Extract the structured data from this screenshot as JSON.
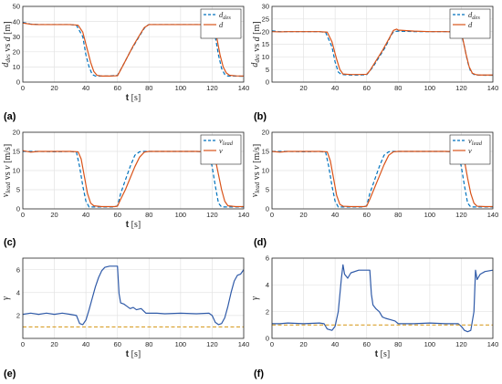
{
  "panel_labels": [
    "(a)",
    "(b)",
    "(c)",
    "(d)",
    "(e)",
    "(f)"
  ],
  "colors": {
    "dashed": "#0072BD",
    "solid": "#D95319",
    "ref": "#D9A02C",
    "gamma": "#2F5AA8"
  },
  "chart_data": [
    {
      "type": "line",
      "panel": "a",
      "xlabel": "t [s]",
      "ylabel": "d_des vs d [m]",
      "xlim": [
        0,
        140
      ],
      "ylim": [
        0,
        50
      ],
      "xticks": [
        0,
        20,
        40,
        60,
        80,
        100,
        120,
        140
      ],
      "yticks": [
        0,
        10,
        20,
        30,
        40,
        50
      ],
      "grid": true,
      "legend": "top-right",
      "series": [
        {
          "name": "d_des",
          "style": "dashed",
          "x": [
            0,
            5,
            10,
            20,
            30,
            34,
            38,
            40,
            42,
            44,
            46,
            50,
            55,
            60,
            64,
            68,
            72,
            76,
            78,
            80,
            85,
            90,
            100,
            110,
            118,
            120,
            122,
            124,
            126,
            128,
            130,
            135,
            140
          ],
          "y": [
            39.5,
            38.3,
            38,
            38,
            38,
            37.5,
            30,
            18,
            10,
            5,
            4,
            4,
            4,
            4.5,
            12,
            20,
            27,
            34,
            37,
            38,
            38,
            38,
            38,
            38,
            38,
            37,
            30,
            18,
            9,
            5,
            4,
            4,
            3.8
          ]
        },
        {
          "name": "d",
          "style": "solid",
          "x": [
            0,
            5,
            10,
            20,
            30,
            35,
            38,
            41,
            43,
            45,
            47,
            50,
            55,
            60,
            62,
            66,
            70,
            74,
            77,
            80,
            85,
            90,
            100,
            110,
            119,
            121,
            123,
            125,
            127,
            129,
            131,
            135,
            140
          ],
          "y": [
            39,
            38.2,
            38,
            38,
            38,
            37.6,
            33,
            21,
            13,
            7,
            4.5,
            4,
            4,
            4.2,
            8,
            16,
            24,
            31,
            36,
            38,
            38,
            38,
            38,
            38,
            38,
            36,
            29,
            18,
            10,
            6,
            4.5,
            4.1,
            4
          ]
        }
      ]
    },
    {
      "type": "line",
      "panel": "b",
      "xlabel": "",
      "ylabel": "d_des vs d [m]",
      "xlim": [
        0,
        140
      ],
      "ylim": [
        0,
        30
      ],
      "xticks": [
        20,
        40,
        60,
        80,
        100,
        120,
        140
      ],
      "yticks": [
        0,
        5,
        10,
        15,
        20,
        25,
        30
      ],
      "grid": true,
      "legend": "top-right",
      "series": [
        {
          "name": "d_des",
          "style": "dashed",
          "x": [
            0,
            5,
            10,
            20,
            30,
            34,
            38,
            40,
            42,
            44,
            50,
            55,
            60,
            64,
            68,
            72,
            75,
            77,
            80,
            90,
            100,
            110,
            118,
            120,
            122,
            124,
            126,
            128,
            130,
            135,
            140
          ],
          "y": [
            20.3,
            20,
            20,
            20,
            20,
            19.7,
            14,
            8,
            4,
            3,
            2.8,
            2.8,
            2.9,
            6,
            10,
            14,
            18,
            20,
            20.2,
            20,
            20,
            20,
            20,
            19,
            14,
            8,
            4,
            3,
            2.8,
            2.7,
            2.7
          ]
        },
        {
          "name": "d",
          "style": "solid",
          "x": [
            0,
            5,
            10,
            20,
            30,
            35,
            38,
            41,
            43,
            45,
            50,
            55,
            60,
            62,
            66,
            70,
            74,
            77,
            79,
            80,
            90,
            100,
            110,
            119,
            121,
            123,
            125,
            127,
            129,
            131,
            135,
            140
          ],
          "y": [
            20,
            19.9,
            20,
            20,
            20,
            19.8,
            16,
            9,
            5,
            3.2,
            3,
            3,
            3.1,
            4.5,
            8.5,
            12.5,
            17,
            20.5,
            21,
            20.6,
            20.2,
            20,
            20,
            19.8,
            17,
            11,
            6,
            3.5,
            3,
            2.8,
            2.8,
            2.8
          ]
        }
      ]
    },
    {
      "type": "line",
      "panel": "c",
      "xlabel": "t [s]",
      "ylabel": "v_lead vs v [m/s]",
      "xlim": [
        0,
        140
      ],
      "ylim": [
        0,
        20
      ],
      "xticks": [
        0,
        20,
        40,
        60,
        80,
        100,
        120,
        140
      ],
      "yticks": [
        0,
        5,
        10,
        15,
        20
      ],
      "grid": true,
      "legend": "top-right",
      "series": [
        {
          "name": "v_lead",
          "style": "dashed",
          "x": [
            0,
            5,
            10,
            20,
            30,
            34,
            36,
            38,
            40,
            42,
            50,
            58,
            60,
            62,
            65,
            68,
            71,
            74,
            76,
            80,
            90,
            100,
            110,
            118,
            120,
            122,
            124,
            126,
            130,
            135,
            140
          ],
          "y": [
            15,
            15,
            15,
            14.9,
            15,
            14.8,
            11,
            6,
            2,
            0.5,
            0.5,
            0.5,
            0.8,
            4,
            7.5,
            11,
            14,
            14.9,
            15,
            15,
            15,
            15,
            15,
            14.8,
            11,
            6,
            1.5,
            0.5,
            0.5,
            0.5,
            0.5
          ]
        },
        {
          "name": "v",
          "style": "solid",
          "x": [
            0,
            5,
            10,
            20,
            30,
            35,
            37,
            39,
            41,
            43,
            45,
            50,
            58,
            60,
            62,
            65,
            68,
            71,
            74,
            77,
            80,
            90,
            100,
            110,
            120,
            122,
            124,
            126,
            128,
            130,
            135,
            140
          ],
          "y": [
            15.2,
            14.8,
            15,
            15,
            15,
            14.9,
            13,
            8.5,
            4,
            1.5,
            0.8,
            0.6,
            0.6,
            0.7,
            2.5,
            5,
            8,
            11,
            13.5,
            14.8,
            15,
            15,
            15,
            15,
            14.9,
            13,
            9,
            5,
            2,
            0.8,
            0.6,
            0.6
          ]
        }
      ]
    },
    {
      "type": "line",
      "panel": "d",
      "xlabel": "",
      "ylabel": "v_lead vs v [m/s]",
      "xlim": [
        0,
        140
      ],
      "ylim": [
        0,
        20
      ],
      "xticks": [
        0,
        20,
        40,
        60,
        80,
        100,
        120,
        140
      ],
      "yticks": [
        0,
        5,
        10,
        15,
        20
      ],
      "grid": true,
      "legend": "top-right",
      "series": [
        {
          "name": "v_lead",
          "style": "dashed",
          "x": [
            0,
            5,
            10,
            20,
            30,
            34,
            36,
            38,
            40,
            42,
            50,
            58,
            60,
            62,
            65,
            68,
            71,
            74,
            76,
            80,
            90,
            100,
            110,
            118,
            120,
            122,
            124,
            126,
            130,
            135,
            140
          ],
          "y": [
            15,
            15,
            15,
            14.9,
            15,
            14.8,
            11,
            6,
            2,
            0.5,
            0.5,
            0.5,
            0.8,
            4,
            7.5,
            11,
            14,
            14.9,
            15,
            15,
            15,
            15,
            15,
            14.8,
            11,
            6,
            1.5,
            0.5,
            0.5,
            0.5,
            0.5
          ]
        },
        {
          "name": "v",
          "style": "solid",
          "x": [
            0,
            5,
            10,
            20,
            30,
            35,
            37,
            39,
            41,
            43,
            45,
            50,
            58,
            60,
            62,
            65,
            68,
            71,
            74,
            77,
            80,
            90,
            100,
            110,
            120,
            122,
            124,
            126,
            128,
            130,
            135,
            140
          ],
          "y": [
            15,
            14.8,
            15,
            15,
            15,
            14.9,
            12.5,
            8,
            3.5,
            1.2,
            0.7,
            0.6,
            0.6,
            0.7,
            2.5,
            5.5,
            8.5,
            11.5,
            14,
            14.9,
            15,
            15,
            15,
            15,
            14.9,
            12.5,
            8,
            4,
            1.5,
            0.7,
            0.6,
            0.6
          ]
        }
      ]
    },
    {
      "type": "line",
      "panel": "e",
      "xlabel": "t [s]",
      "ylabel": "γ",
      "xlim": [
        0,
        140
      ],
      "ylim": [
        0,
        7
      ],
      "xticks": [
        0,
        20,
        40,
        60,
        80,
        100,
        120,
        140
      ],
      "yticks": [
        2,
        4,
        6
      ],
      "grid": true,
      "legend": "none",
      "series": [
        {
          "name": "",
          "style": "solid",
          "color_key": "gamma",
          "x": [
            0,
            5,
            10,
            15,
            20,
            25,
            30,
            34,
            36,
            38,
            40,
            42,
            44,
            46,
            48,
            50,
            52,
            55,
            58,
            60,
            61,
            62,
            64,
            66,
            68,
            70,
            72,
            75,
            78,
            80,
            85,
            90,
            100,
            110,
            118,
            120,
            122,
            124,
            126,
            128,
            130,
            132,
            134,
            136,
            138,
            140
          ],
          "y": [
            2.1,
            2.2,
            2.1,
            2.2,
            2.1,
            2.2,
            2.1,
            2.0,
            1.3,
            1.2,
            1.6,
            2.5,
            3.5,
            4.5,
            5.3,
            5.9,
            6.2,
            6.3,
            6.3,
            6.3,
            3.9,
            3.1,
            3.0,
            2.8,
            2.6,
            2.7,
            2.5,
            2.6,
            2.2,
            2.2,
            2.2,
            2.15,
            2.2,
            2.15,
            2.2,
            2.0,
            1.4,
            1.2,
            1.3,
            1.8,
            2.8,
            4.0,
            5.0,
            5.5,
            5.6,
            6.0
          ]
        },
        {
          "name": "",
          "style": "dashed",
          "color_key": "ref",
          "x": [
            0,
            140
          ],
          "y": [
            1,
            1
          ]
        }
      ]
    },
    {
      "type": "line",
      "panel": "f",
      "xlabel": "t [s]",
      "ylabel": "γ",
      "xlim": [
        0,
        140
      ],
      "ylim": [
        0,
        6
      ],
      "xticks": [
        0,
        20,
        40,
        60,
        80,
        100,
        120,
        140
      ],
      "yticks": [
        0,
        2,
        4,
        6
      ],
      "grid": true,
      "legend": "none",
      "series": [
        {
          "name": "",
          "style": "solid",
          "color_key": "gamma",
          "x": [
            0,
            5,
            10,
            20,
            30,
            33,
            35,
            38,
            40,
            42,
            44,
            45,
            46,
            48,
            50,
            55,
            60,
            62,
            63,
            64,
            66,
            68,
            70,
            72,
            75,
            78,
            80,
            90,
            100,
            110,
            118,
            120,
            122,
            124,
            126,
            128,
            129,
            130,
            132,
            135,
            140
          ],
          "y": [
            1.1,
            1.1,
            1.15,
            1.1,
            1.15,
            1.1,
            0.7,
            0.6,
            0.9,
            2.0,
            4.5,
            5.5,
            4.8,
            4.5,
            4.9,
            5.1,
            5.1,
            5.1,
            3.3,
            2.5,
            2.2,
            2.0,
            1.6,
            1.5,
            1.4,
            1.3,
            1.1,
            1.1,
            1.15,
            1.1,
            1.1,
            0.9,
            0.6,
            0.5,
            0.6,
            2.0,
            5.1,
            4.4,
            4.8,
            5.0,
            5.1
          ]
        },
        {
          "name": "",
          "style": "dashed",
          "color_key": "ref",
          "x": [
            0,
            140
          ],
          "y": [
            1,
            1
          ]
        }
      ]
    }
  ]
}
